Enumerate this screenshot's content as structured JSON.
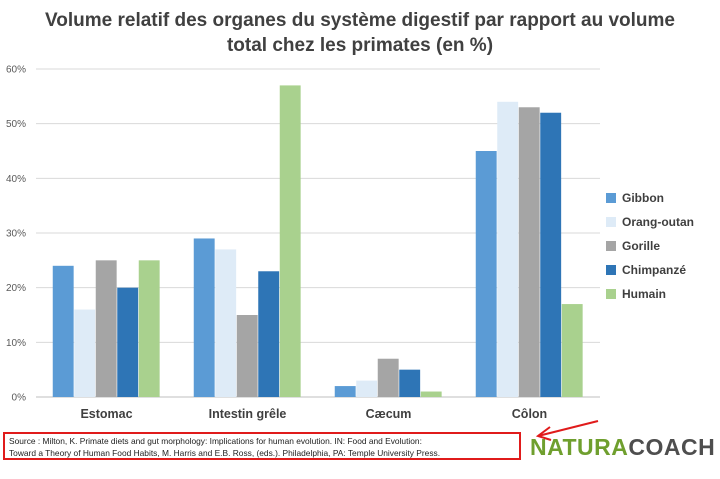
{
  "title_line1": "Volume relatif des organes du système digestif par rapport au volume",
  "title_line2": "total chez les primates (en %)",
  "source_line1": "Source : Milton, K. Primate diets and gut morphology: Implications for human evolution. IN: Food and Evolution:",
  "source_line2": "Toward a Theory of Human Food Habits, M. Harris and E.B. Ross, (eds.). Philadelphia, PA: Temple University Press.",
  "logo": {
    "part1": "NATURA",
    "part2": "COACH"
  },
  "colors": {
    "arrow": "#e01b1b",
    "gridline": "#d9d9d9"
  },
  "chart_data": {
    "type": "bar",
    "title": "Volume relatif des organes du système digestif par rapport au volume total chez les primates (en %)",
    "categories": [
      "Estomac",
      "Intestin grêle",
      "Cæcum",
      "Côlon"
    ],
    "series": [
      {
        "name": "Gibbon",
        "color": "#5b9bd5",
        "values": [
          24,
          29,
          2,
          45
        ]
      },
      {
        "name": "Orang-outan",
        "color": "#deebf7",
        "values": [
          16,
          27,
          3,
          54
        ]
      },
      {
        "name": "Gorille",
        "color": "#a5a5a5",
        "values": [
          25,
          15,
          7,
          53
        ]
      },
      {
        "name": "Chimpanzé",
        "color": "#2e75b6",
        "values": [
          20,
          23,
          5,
          52
        ]
      },
      {
        "name": "Humain",
        "color": "#a9d18e",
        "values": [
          25,
          57,
          1,
          17
        ]
      }
    ],
    "ylim": [
      0,
      60
    ],
    "yticks": [
      0,
      10,
      20,
      30,
      40,
      50,
      60
    ],
    "ytick_labels": [
      "0%",
      "10%",
      "20%",
      "30%",
      "40%",
      "50%",
      "60%"
    ],
    "grid": true,
    "legend_position": "right"
  }
}
